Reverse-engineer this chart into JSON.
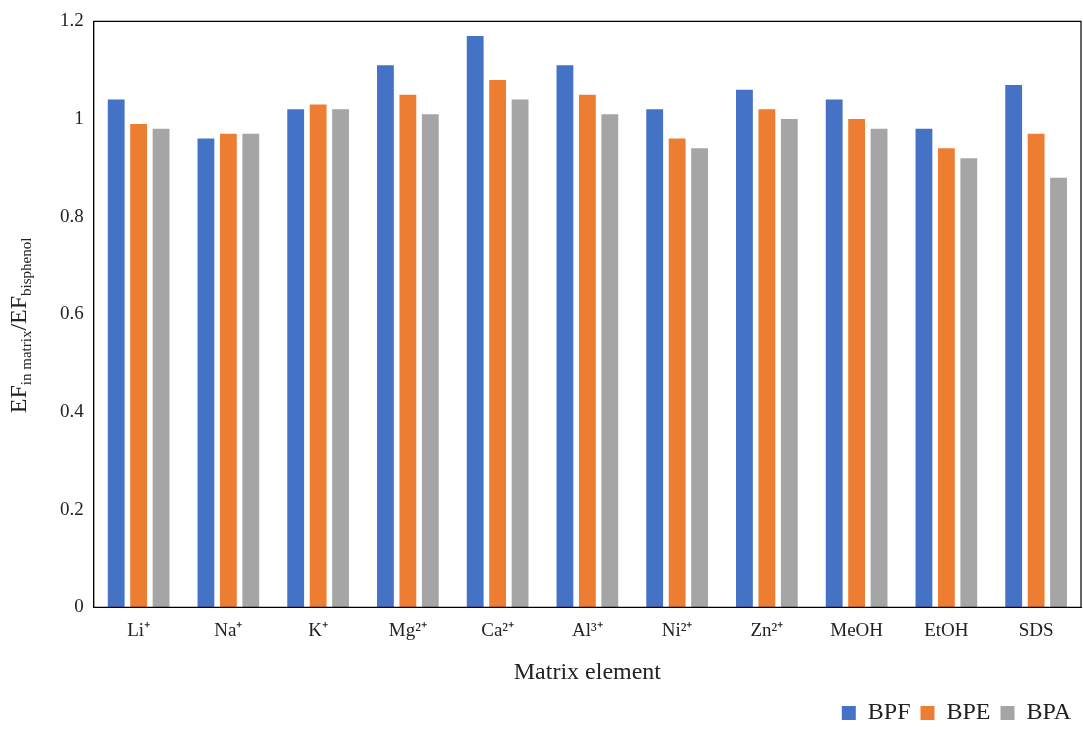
{
  "chart_data": {
    "type": "bar",
    "xlabel": "Matrix element",
    "ylabel": "EF$_{in matrix}$/EF$_{bisphenol}$",
    "categories": [
      "Li⁺",
      "Na⁺",
      "K⁺",
      "Mg²⁺",
      "Ca²⁺",
      "Al³⁺",
      "Ni²⁺",
      "Zn²⁺",
      "MeOH",
      "EtOH",
      "SDS"
    ],
    "series": [
      {
        "name": "BPF",
        "color": "#4472c4",
        "values": [
          1.04,
          0.96,
          1.02,
          1.11,
          1.17,
          1.11,
          1.02,
          1.06,
          1.04,
          0.98,
          1.07
        ]
      },
      {
        "name": "BPE",
        "color": "#ed7d31",
        "values": [
          0.99,
          0.97,
          1.03,
          1.05,
          1.08,
          1.05,
          0.96,
          1.02,
          1.0,
          0.94,
          0.97
        ]
      },
      {
        "name": "BPA",
        "color": "#a5a5a5",
        "values": [
          0.98,
          0.97,
          1.02,
          1.01,
          1.04,
          1.01,
          0.94,
          1.0,
          0.98,
          0.92,
          0.88
        ]
      }
    ],
    "ylim": [
      0,
      1.2
    ],
    "yticks": [
      0,
      0.2,
      0.4,
      0.6,
      0.8,
      1,
      1.2
    ],
    "grid": false,
    "legend": "bottom right"
  }
}
